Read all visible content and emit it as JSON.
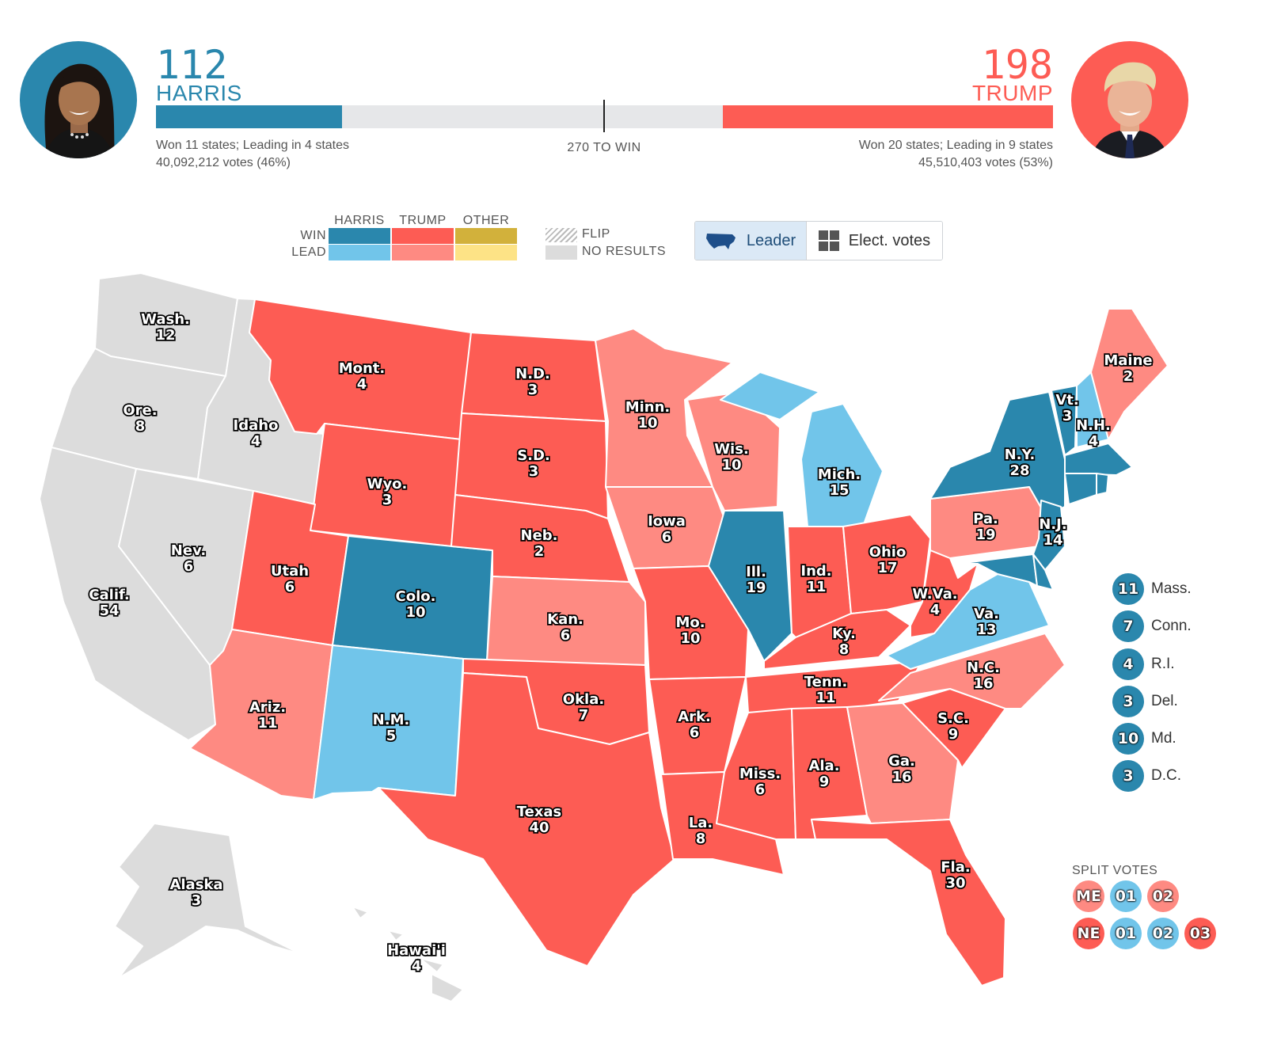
{
  "colors": {
    "harris_win": "#2a87ad",
    "harris_lead": "#71c5ea",
    "trump_win": "#fd5c54",
    "trump_lead": "#fe8a82",
    "other_win": "#d2b13b",
    "other_lead": "#fde386",
    "no_results": "#dcdcdc"
  },
  "harris": {
    "votes": "112",
    "name": "HARRIS",
    "states_text": "Won 11 states; Leading in 4 states",
    "popular_text": "40,092,212 votes (46%)",
    "bar_fraction": 0.2076
  },
  "trump": {
    "votes": "198",
    "name": "TRUMP",
    "states_text": "Won 20 states; Leading in 9 states",
    "popular_text": "45,510,403 votes (53%)",
    "bar_fraction": 0.3678
  },
  "win_threshold": "270 TO WIN",
  "legend": {
    "harris": "HARRIS",
    "trump": "TRUMP",
    "other": "OTHER",
    "win": "WIN",
    "lead": "LEAD",
    "flip": "FLIP",
    "no_results": "NO RESULTS"
  },
  "toggle": {
    "leader": "Leader",
    "elect_votes": "Elect. votes",
    "leader_icon": "us-map-icon",
    "elect_icon": "grid-icon"
  },
  "states": [
    {
      "abbr": "Wash.",
      "ev": "12",
      "status": "no_results"
    },
    {
      "abbr": "Ore.",
      "ev": "8",
      "status": "no_results"
    },
    {
      "abbr": "Calif.",
      "ev": "54",
      "status": "no_results"
    },
    {
      "abbr": "Idaho",
      "ev": "4",
      "status": "no_results"
    },
    {
      "abbr": "Nev.",
      "ev": "6",
      "status": "no_results"
    },
    {
      "abbr": "Mont.",
      "ev": "4",
      "status": "trump_win"
    },
    {
      "abbr": "Wyo.",
      "ev": "3",
      "status": "trump_win"
    },
    {
      "abbr": "Utah",
      "ev": "6",
      "status": "trump_win"
    },
    {
      "abbr": "Ariz.",
      "ev": "11",
      "status": "trump_lead"
    },
    {
      "abbr": "Colo.",
      "ev": "10",
      "status": "harris_win"
    },
    {
      "abbr": "N.M.",
      "ev": "5",
      "status": "harris_lead"
    },
    {
      "abbr": "N.D.",
      "ev": "3",
      "status": "trump_win"
    },
    {
      "abbr": "S.D.",
      "ev": "3",
      "status": "trump_win"
    },
    {
      "abbr": "Neb.",
      "ev": "2",
      "status": "trump_win"
    },
    {
      "abbr": "Kan.",
      "ev": "6",
      "status": "trump_lead"
    },
    {
      "abbr": "Okla.",
      "ev": "7",
      "status": "trump_win"
    },
    {
      "abbr": "Texas",
      "ev": "40",
      "status": "trump_win"
    },
    {
      "abbr": "Minn.",
      "ev": "10",
      "status": "trump_lead"
    },
    {
      "abbr": "Iowa",
      "ev": "6",
      "status": "trump_lead"
    },
    {
      "abbr": "Mo.",
      "ev": "10",
      "status": "trump_win"
    },
    {
      "abbr": "Ark.",
      "ev": "6",
      "status": "trump_win"
    },
    {
      "abbr": "La.",
      "ev": "8",
      "status": "trump_win"
    },
    {
      "abbr": "Wis.",
      "ev": "10",
      "status": "trump_lead"
    },
    {
      "abbr": "Ill.",
      "ev": "19",
      "status": "harris_win"
    },
    {
      "abbr": "Mich.",
      "ev": "15",
      "status": "harris_lead"
    },
    {
      "abbr": "Ind.",
      "ev": "11",
      "status": "trump_win"
    },
    {
      "abbr": "Ohio",
      "ev": "17",
      "status": "trump_win"
    },
    {
      "abbr": "Ky.",
      "ev": "8",
      "status": "trump_win"
    },
    {
      "abbr": "Tenn.",
      "ev": "11",
      "status": "trump_win"
    },
    {
      "abbr": "Miss.",
      "ev": "6",
      "status": "trump_win"
    },
    {
      "abbr": "Ala.",
      "ev": "9",
      "status": "trump_win"
    },
    {
      "abbr": "Ga.",
      "ev": "16",
      "status": "trump_lead"
    },
    {
      "abbr": "Fla.",
      "ev": "30",
      "status": "trump_win"
    },
    {
      "abbr": "S.C.",
      "ev": "9",
      "status": "trump_win"
    },
    {
      "abbr": "N.C.",
      "ev": "16",
      "status": "trump_lead"
    },
    {
      "abbr": "Va.",
      "ev": "13",
      "status": "harris_lead"
    },
    {
      "abbr": "W.Va.",
      "ev": "4",
      "status": "trump_win"
    },
    {
      "abbr": "Pa.",
      "ev": "19",
      "status": "trump_lead"
    },
    {
      "abbr": "N.Y.",
      "ev": "28",
      "status": "harris_win"
    },
    {
      "abbr": "N.J.",
      "ev": "14",
      "status": "harris_win"
    },
    {
      "abbr": "Vt.",
      "ev": "3",
      "status": "harris_win"
    },
    {
      "abbr": "N.H.",
      "ev": "4",
      "status": "harris_lead"
    },
    {
      "abbr": "Maine",
      "ev": "2",
      "status": "trump_lead"
    },
    {
      "abbr": "Alaska",
      "ev": "3",
      "status": "no_results"
    },
    {
      "abbr": "Hawai'i",
      "ev": "4",
      "status": "no_results"
    }
  ],
  "small_states": [
    {
      "ev": "11",
      "name": "Mass.",
      "status": "harris_win"
    },
    {
      "ev": "7",
      "name": "Conn.",
      "status": "harris_win"
    },
    {
      "ev": "4",
      "name": "R.I.",
      "status": "harris_win"
    },
    {
      "ev": "3",
      "name": "Del.",
      "status": "harris_win"
    },
    {
      "ev": "10",
      "name": "Md.",
      "status": "harris_win"
    },
    {
      "ev": "3",
      "name": "D.C.",
      "status": "harris_win"
    }
  ],
  "split_votes": {
    "title": "SPLIT VOTES",
    "maine": [
      {
        "label": "ME",
        "status": "trump_lead"
      },
      {
        "label": "01",
        "status": "harris_lead"
      },
      {
        "label": "02",
        "status": "trump_lead"
      }
    ],
    "nebraska": [
      {
        "label": "NE",
        "status": "trump_win"
      },
      {
        "label": "01",
        "status": "harris_lead"
      },
      {
        "label": "02",
        "status": "harris_lead"
      },
      {
        "label": "03",
        "status": "trump_win"
      }
    ]
  }
}
